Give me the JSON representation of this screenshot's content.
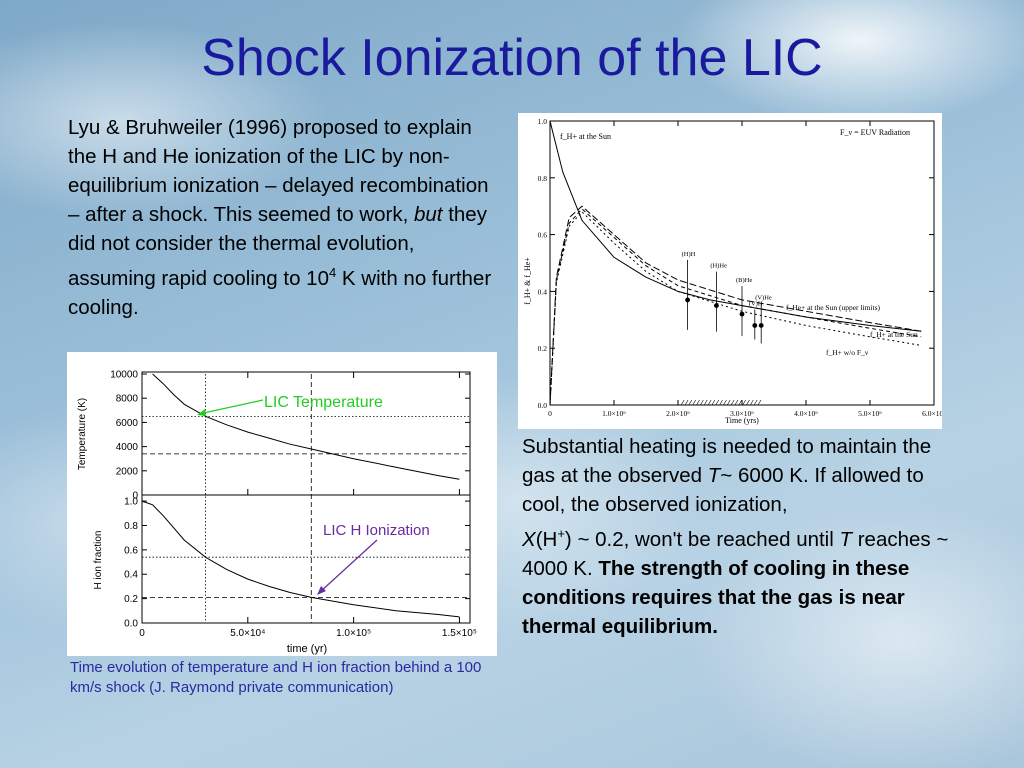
{
  "title": "Shock Ionization of the LIC",
  "left_paragraph": {
    "part1": "Lyu & Bruhweiler (1996) proposed to explain the H and He ionization of the LIC by non-equilibrium ionization – delayed recombination – after a shock. This seemed to work, ",
    "italic": "but",
    "part2": " they did not consider the thermal evolution, assuming rapid cooling to 10",
    "sup": "4",
    "part3": " K with no further cooling."
  },
  "right_paragraph": {
    "part1": "Substantial heating is needed to maintain the gas at the observed ",
    "t1": "T",
    "part2": "~ 6000 K.  If allowed to cool, the observed ionization,",
    "x": "X",
    "part3": "(H",
    "sup": "+",
    "part4": ") ~ 0.2, won't be reached until ",
    "t2": "T",
    "part5": " reaches ~ 4000 K. ",
    "bold": "The strength of cooling in these conditions requires that the gas is near thermal equilibrium."
  },
  "caption": "Time evolution of temperature and H ion fraction behind a 100 km/s shock (J. Raymond private communication)",
  "chart_data": [
    {
      "type": "line",
      "panel": "temperature",
      "ylabel": "Temperature (K)",
      "yticks": [
        "10000",
        "8000",
        "6000",
        "4000",
        "2000",
        "0"
      ],
      "ylim": [
        0,
        10000
      ],
      "xlim": [
        0,
        155000
      ],
      "x": [
        5000,
        10000,
        15000,
        20000,
        30000,
        40000,
        50000,
        60000,
        70000,
        80000,
        100000,
        120000,
        140000,
        150000
      ],
      "values": [
        10000,
        9200,
        8300,
        7500,
        6500,
        5800,
        5200,
        4700,
        4200,
        3800,
        3000,
        2300,
        1600,
        1300
      ],
      "annotation": "LIC Temperature",
      "reference_lines": {
        "x": [
          30000,
          80000
        ],
        "y": [
          6500,
          3400
        ]
      }
    },
    {
      "type": "line",
      "panel": "ionization",
      "xlabel": "time (yr)",
      "ylabel": "H ion fraction",
      "yticks": [
        "1.0",
        "0.8",
        "0.6",
        "0.4",
        "0.2",
        "0.0"
      ],
      "xticks": [
        "0",
        "5.0×10⁴",
        "1.0×10⁵",
        "1.5×10⁵"
      ],
      "ylim": [
        0,
        1.05
      ],
      "xlim": [
        0,
        155000
      ],
      "x": [
        0,
        5000,
        10000,
        20000,
        30000,
        40000,
        50000,
        60000,
        70000,
        80000,
        100000,
        120000,
        140000,
        150000
      ],
      "values": [
        1.0,
        0.97,
        0.88,
        0.68,
        0.54,
        0.44,
        0.36,
        0.3,
        0.25,
        0.21,
        0.15,
        0.1,
        0.07,
        0.05
      ],
      "annotation": "LIC H Ionization",
      "reference_lines": {
        "x": [
          30000,
          80000
        ],
        "y": [
          0.54,
          0.21
        ]
      }
    },
    {
      "type": "line",
      "panel": "lyu-bruhweiler",
      "xlabel": "Time (yrs)",
      "ylabel": "f_H+ & f_He+",
      "yticks": [
        "0.0",
        "0.2",
        "0.4",
        "0.6",
        "0.8",
        "1.0"
      ],
      "xticks": [
        "0",
        "1.0×10⁶",
        "2.0×10⁶",
        "3.0×10⁶",
        "4.0×10⁶",
        "5.0×10⁶",
        "6.0×10⁶"
      ],
      "ylim": [
        0,
        1.0
      ],
      "xlim": [
        0,
        6000000
      ],
      "label_top_left": "f_H+ at the Sun",
      "label_top_right": "F_ν = EUV Radiation",
      "series": [
        {
          "name": "f_H+ at the Sun",
          "style": "solid",
          "x": [
            0,
            200000,
            500000,
            1000000,
            1500000,
            2000000,
            2500000,
            3000000,
            4000000,
            5000000,
            5800000
          ],
          "values": [
            1.0,
            0.82,
            0.65,
            0.52,
            0.45,
            0.4,
            0.37,
            0.35,
            0.31,
            0.28,
            0.26
          ]
        },
        {
          "name": "f_He+ at the Sun (upper limits)",
          "style": "dashed",
          "x": [
            0,
            100000,
            300000,
            500000,
            1000000,
            1500000,
            2000000,
            3000000,
            4000000,
            5000000,
            5800000
          ],
          "values": [
            0.0,
            0.45,
            0.66,
            0.7,
            0.6,
            0.5,
            0.44,
            0.37,
            0.33,
            0.29,
            0.26
          ]
        },
        {
          "name": "f_H+ at the Sun",
          "style": "dashed",
          "x": [
            0,
            100000,
            300000,
            500000,
            1000000,
            1500000,
            2000000,
            3000000,
            4000000,
            5000000,
            5800000
          ],
          "values": [
            0.0,
            0.44,
            0.64,
            0.69,
            0.59,
            0.49,
            0.42,
            0.35,
            0.31,
            0.27,
            0.24
          ]
        },
        {
          "name": "f_H+ w/o F_ν",
          "style": "dashed",
          "x": [
            0,
            100000,
            300000,
            500000,
            1000000,
            1500000,
            2000000,
            3000000,
            4000000,
            5000000,
            5800000
          ],
          "values": [
            0.0,
            0.43,
            0.63,
            0.68,
            0.57,
            0.47,
            0.4,
            0.33,
            0.28,
            0.24,
            0.21
          ]
        }
      ],
      "markers": [
        {
          "label": "(H)H",
          "x": 2150000,
          "value": 0.37
        },
        {
          "label": "(H)He",
          "x": 2600000,
          "value": 0.35
        },
        {
          "label": "(B)He",
          "x": 3000000,
          "value": 0.32
        },
        {
          "label": "(V)He",
          "x": 3300000,
          "value": 0.28
        },
        {
          "label": "(V)H",
          "x": 3200000,
          "value": 0.28
        }
      ],
      "series_labels": [
        "f_He+ at the Sun (upper limits)",
        "f_H+ at the Sun",
        "f_H+ w/o F_ν"
      ]
    }
  ],
  "colors": {
    "title": "#1a1a9e",
    "caption": "#2a2aa0",
    "temp_annotation": "#22cc22",
    "ion_annotation": "#6a2aa0"
  }
}
